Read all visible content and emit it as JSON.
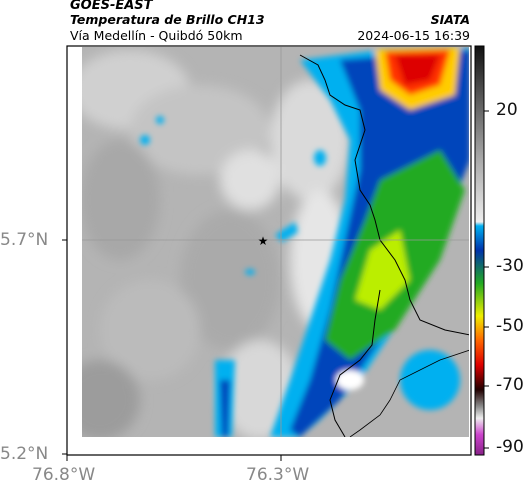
{
  "header": {
    "satellite": "GOES-EAST",
    "product": "Temperatura de Brillo CH13",
    "region": "Vía Medellín - Quibdó 50km",
    "org": "SIATA",
    "datetime": "2024-06-15 16:39"
  },
  "axes": {
    "lat_labels": [
      "5.7°N",
      "5.2°N"
    ],
    "lon_labels": [
      "76.8°W",
      "76.3°W"
    ]
  },
  "colorbar": {
    "tick_labels": [
      "20",
      "-30",
      "-50",
      "-70",
      "-90"
    ],
    "colors": [
      "#111111",
      "#555555",
      "#aaaaaa",
      "#eeeeee",
      "#00b0f0",
      "#0033aa",
      "#22aa22",
      "#eeee00",
      "#ff6600",
      "#dd0000",
      "#220000",
      "#cc44cc"
    ]
  },
  "map": {
    "marker_icon": "star-icon",
    "gridline_color": "#999999",
    "border_color": "#000000"
  }
}
